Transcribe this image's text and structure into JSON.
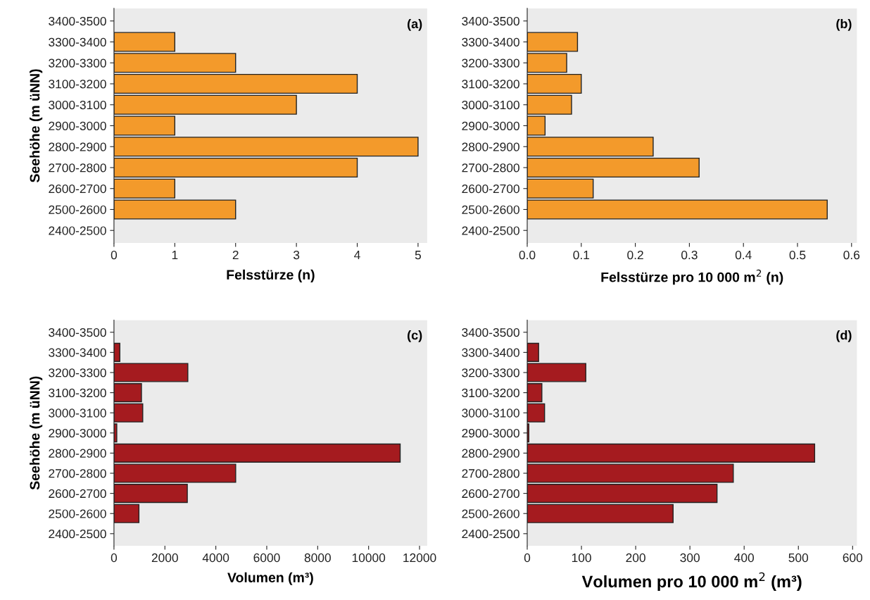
{
  "chart_data": [
    {
      "type": "bar",
      "orientation": "horizontal",
      "categories": [
        "3400-3500",
        "3300-3400",
        "3200-3300",
        "3100-3200",
        "3000-3100",
        "2900-3000",
        "2800-2900",
        "2700-2800",
        "2600-2700",
        "2500-2600",
        "2400-2500"
      ],
      "values": [
        null,
        1,
        2,
        4,
        3,
        1,
        5,
        4,
        1,
        2,
        null
      ],
      "color": "#f39a2b",
      "xlim": [
        0,
        5.15
      ],
      "xticks": [
        0,
        1,
        2,
        3,
        4,
        5
      ],
      "xlabel": "Felsstürze (n)",
      "ylabel": "Seehöhe (m üNN)",
      "annotations": [
        "(a)"
      ],
      "grid": false
    },
    {
      "type": "bar",
      "orientation": "horizontal",
      "categories": [
        "3400-3500",
        "3300-3400",
        "3200-3300",
        "3100-3200",
        "3000-3100",
        "2900-3000",
        "2800-2900",
        "2700-2800",
        "2600-2700",
        "2500-2600",
        "2400-2500"
      ],
      "values": [
        null,
        0.093,
        0.073,
        0.1,
        0.082,
        0.033,
        0.233,
        0.318,
        0.122,
        0.555,
        null
      ],
      "color": "#f39a2b",
      "xlim": [
        0,
        0.61
      ],
      "xticks": [
        {
          "value": 0,
          "label": "0.0"
        },
        0.1,
        0.2,
        0.3,
        0.4,
        0.5,
        0.6
      ],
      "xlabel": "Felsstürze pro 10 000 m$^{2}$ (n)",
      "annotations": [
        "(b)"
      ],
      "grid": false
    },
    {
      "type": "bar",
      "orientation": "horizontal",
      "categories": [
        "3400-3500",
        "3300-3400",
        "3200-3300",
        "3100-3200",
        "3000-3100",
        "2900-3000",
        "2800-2900",
        "2700-2800",
        "2600-2700",
        "2500-2600",
        "2400-2500"
      ],
      "values": [
        null,
        230,
        2900,
        1080,
        1130,
        110,
        11240,
        4780,
        2880,
        980,
        null
      ],
      "color": "#a51b1f",
      "xlim": [
        0,
        12300
      ],
      "xticks": [
        0,
        2000,
        4000,
        6000,
        8000,
        10000,
        12000
      ],
      "xlabel": "Volumen (m³)",
      "ylabel": "Seehöhe (m üNN)",
      "annotations": [
        "(c)"
      ],
      "grid": false
    },
    {
      "type": "bar",
      "orientation": "horizontal",
      "categories": [
        "3400-3500",
        "3300-3400",
        "3200-3300",
        "3100-3200",
        "3000-3100",
        "2900-3000",
        "2800-2900",
        "2700-2800",
        "2600-2700",
        "2500-2600",
        "2400-2500"
      ],
      "values": [
        null,
        21,
        108,
        27,
        32,
        3,
        530,
        380,
        350,
        269,
        null
      ],
      "color": "#a51b1f",
      "xlim": [
        0,
        608
      ],
      "xticks": [
        0,
        100,
        200,
        300,
        400,
        500,
        600
      ],
      "xlabel": "Volumen pro 10 000 m$^{2}$ (m³)",
      "annotations": [
        "(d)"
      ],
      "grid": false
    }
  ]
}
